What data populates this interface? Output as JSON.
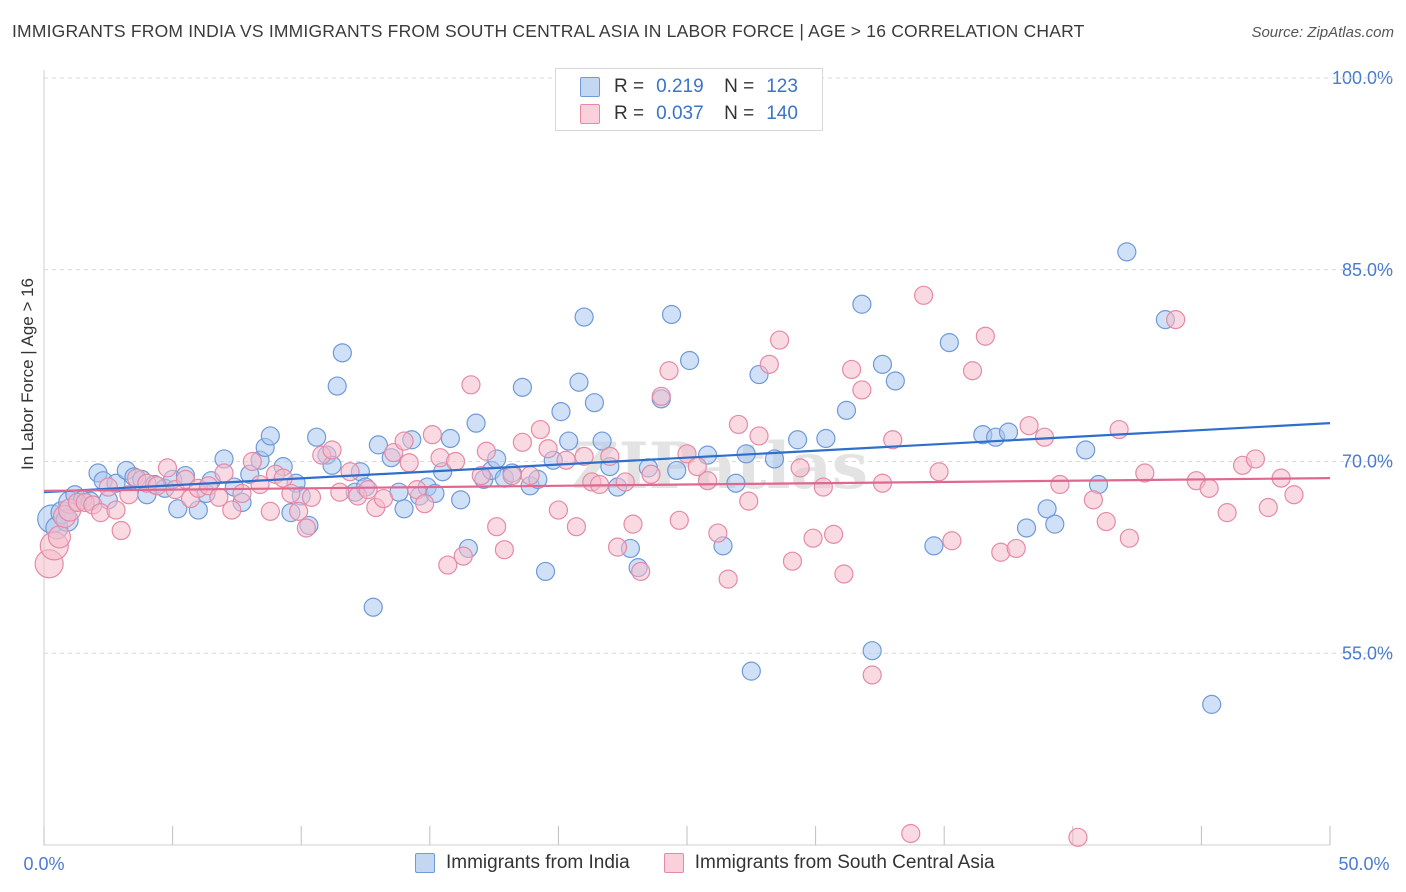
{
  "title": "IMMIGRANTS FROM INDIA VS IMMIGRANTS FROM SOUTH CENTRAL ASIA IN LABOR FORCE | AGE > 16 CORRELATION CHART",
  "source": "Source: ZipAtlas.com",
  "watermark": "ZIPatlas",
  "legend": {
    "r_label": "R =",
    "n_label": "N =",
    "india": {
      "r": "0.219",
      "n": "123"
    },
    "sca": {
      "r": "0.037",
      "n": "140"
    }
  },
  "colors": {
    "india_fill": "#a9c6ef",
    "india_stroke": "#6f9ad8",
    "india_line": "#2e6fcc",
    "sca_fill": "#f6bccb",
    "sca_stroke": "#e58aa6",
    "sca_line": "#e06890",
    "tick": "#4a7bd0"
  },
  "chart_data": {
    "type": "scatter",
    "title": "IMMIGRANTS FROM INDIA VS IMMIGRANTS FROM SOUTH CENTRAL ASIA IN LABOR FORCE | AGE > 16 CORRELATION CHART",
    "xlabel": "",
    "ylabel": "In Labor Force | Age > 16",
    "xlim": [
      0,
      50
    ],
    "ylim": [
      40,
      100
    ],
    "x_tick_labels": [
      "0.0%",
      "50.0%"
    ],
    "y_ticks": [
      55,
      70,
      85,
      100
    ],
    "y_tick_labels": [
      "55.0%",
      "70.0%",
      "85.0%",
      "100.0%"
    ],
    "grid": "horizontal dashed",
    "legend_position": "top-center",
    "series": [
      {
        "name": "Immigrants from India",
        "r": 0.219,
        "n": 123,
        "trend": [
          [
            0,
            67.6
          ],
          [
            50,
            73.0
          ]
        ],
        "points": [
          [
            0.3,
            65.5
          ],
          [
            0.5,
            64.8
          ],
          [
            0.7,
            66.0
          ],
          [
            0.9,
            65.4
          ],
          [
            1.0,
            66.8
          ],
          [
            1.2,
            67.4
          ],
          [
            1.5,
            67.0
          ],
          [
            1.8,
            66.9
          ],
          [
            2.1,
            69.1
          ],
          [
            2.3,
            68.5
          ],
          [
            2.5,
            67.0
          ],
          [
            2.8,
            68.3
          ],
          [
            3.2,
            69.3
          ],
          [
            3.5,
            68.8
          ],
          [
            3.8,
            68.6
          ],
          [
            4.0,
            67.4
          ],
          [
            4.3,
            68.2
          ],
          [
            4.7,
            67.9
          ],
          [
            5.0,
            68.6
          ],
          [
            5.2,
            66.3
          ],
          [
            5.5,
            68.9
          ],
          [
            6.0,
            66.2
          ],
          [
            6.3,
            67.5
          ],
          [
            6.5,
            68.5
          ],
          [
            7.0,
            70.2
          ],
          [
            7.4,
            68.0
          ],
          [
            7.7,
            66.8
          ],
          [
            8.0,
            69.0
          ],
          [
            8.4,
            70.1
          ],
          [
            8.6,
            71.1
          ],
          [
            8.8,
            72.0
          ],
          [
            9.3,
            69.6
          ],
          [
            9.6,
            66.0
          ],
          [
            9.8,
            68.3
          ],
          [
            10.0,
            67.3
          ],
          [
            10.3,
            65.0
          ],
          [
            10.6,
            71.9
          ],
          [
            11.0,
            70.5
          ],
          [
            11.2,
            69.7
          ],
          [
            11.4,
            75.9
          ],
          [
            11.6,
            78.5
          ],
          [
            12.1,
            67.6
          ],
          [
            12.3,
            69.2
          ],
          [
            12.5,
            68.0
          ],
          [
            12.8,
            58.6
          ],
          [
            13.0,
            71.3
          ],
          [
            13.5,
            70.3
          ],
          [
            13.8,
            67.6
          ],
          [
            14.0,
            66.3
          ],
          [
            14.3,
            71.7
          ],
          [
            14.6,
            67.3
          ],
          [
            14.9,
            68.0
          ],
          [
            15.2,
            67.5
          ],
          [
            15.5,
            69.2
          ],
          [
            15.8,
            71.8
          ],
          [
            16.2,
            67.0
          ],
          [
            16.5,
            63.2
          ],
          [
            16.8,
            73.0
          ],
          [
            17.1,
            68.6
          ],
          [
            17.4,
            69.3
          ],
          [
            17.6,
            70.2
          ],
          [
            17.9,
            68.7
          ],
          [
            18.2,
            69.1
          ],
          [
            18.6,
            75.8
          ],
          [
            18.9,
            68.1
          ],
          [
            19.2,
            68.6
          ],
          [
            19.5,
            61.4
          ],
          [
            19.8,
            70.1
          ],
          [
            20.1,
            73.9
          ],
          [
            20.4,
            71.6
          ],
          [
            20.8,
            76.2
          ],
          [
            21.0,
            81.3
          ],
          [
            21.4,
            74.6
          ],
          [
            21.7,
            71.6
          ],
          [
            22.0,
            69.6
          ],
          [
            22.3,
            68.0
          ],
          [
            22.8,
            63.2
          ],
          [
            23.1,
            61.7
          ],
          [
            23.5,
            69.5
          ],
          [
            24.0,
            74.9
          ],
          [
            24.4,
            81.5
          ],
          [
            24.6,
            69.3
          ],
          [
            25.1,
            77.9
          ],
          [
            25.8,
            70.5
          ],
          [
            26.4,
            63.4
          ],
          [
            26.9,
            68.3
          ],
          [
            27.3,
            70.6
          ],
          [
            27.5,
            53.6
          ],
          [
            27.8,
            76.8
          ],
          [
            28.4,
            70.2
          ],
          [
            29.3,
            71.7
          ],
          [
            30.4,
            71.8
          ],
          [
            31.2,
            74.0
          ],
          [
            31.8,
            82.3
          ],
          [
            32.2,
            55.2
          ],
          [
            32.6,
            77.6
          ],
          [
            33.1,
            76.3
          ],
          [
            34.6,
            63.4
          ],
          [
            35.2,
            79.3
          ],
          [
            36.5,
            72.1
          ],
          [
            37.0,
            71.9
          ],
          [
            37.5,
            72.3
          ],
          [
            38.2,
            64.8
          ],
          [
            39.0,
            66.3
          ],
          [
            39.3,
            65.1
          ],
          [
            40.5,
            70.9
          ],
          [
            41.0,
            68.2
          ],
          [
            42.1,
            86.4
          ],
          [
            43.6,
            81.1
          ],
          [
            45.4,
            51.0
          ]
        ]
      },
      {
        "name": "Immigrants from South Central Asia",
        "r": 0.037,
        "n": 140,
        "trend": [
          [
            0,
            67.7
          ],
          [
            50,
            68.7
          ]
        ],
        "points": [
          [
            0.2,
            62.0
          ],
          [
            0.4,
            63.4
          ],
          [
            0.6,
            64.1
          ],
          [
            0.8,
            65.7
          ],
          [
            1.0,
            66.2
          ],
          [
            1.3,
            66.8
          ],
          [
            1.6,
            66.8
          ],
          [
            1.9,
            66.6
          ],
          [
            2.2,
            66.0
          ],
          [
            2.5,
            68.0
          ],
          [
            2.8,
            66.2
          ],
          [
            3.0,
            64.6
          ],
          [
            3.3,
            67.4
          ],
          [
            3.6,
            68.7
          ],
          [
            4.0,
            68.3
          ],
          [
            4.4,
            68.1
          ],
          [
            4.8,
            69.5
          ],
          [
            5.1,
            67.8
          ],
          [
            5.5,
            68.6
          ],
          [
            5.7,
            67.1
          ],
          [
            6.0,
            67.9
          ],
          [
            6.4,
            68.1
          ],
          [
            6.8,
            67.2
          ],
          [
            7.0,
            69.1
          ],
          [
            7.3,
            66.2
          ],
          [
            7.7,
            67.5
          ],
          [
            8.1,
            70.0
          ],
          [
            8.4,
            68.2
          ],
          [
            8.8,
            66.1
          ],
          [
            9.0,
            69.0
          ],
          [
            9.3,
            68.7
          ],
          [
            9.6,
            67.5
          ],
          [
            9.9,
            66.1
          ],
          [
            10.2,
            64.8
          ],
          [
            10.4,
            67.2
          ],
          [
            10.8,
            70.5
          ],
          [
            11.2,
            70.9
          ],
          [
            11.5,
            67.6
          ],
          [
            11.9,
            69.2
          ],
          [
            12.2,
            67.3
          ],
          [
            12.6,
            67.8
          ],
          [
            12.9,
            66.4
          ],
          [
            13.2,
            67.1
          ],
          [
            13.6,
            70.7
          ],
          [
            14.0,
            71.6
          ],
          [
            14.2,
            69.9
          ],
          [
            14.5,
            67.8
          ],
          [
            14.8,
            66.7
          ],
          [
            15.1,
            72.1
          ],
          [
            15.4,
            70.3
          ],
          [
            15.7,
            61.9
          ],
          [
            16.0,
            70.0
          ],
          [
            16.3,
            62.6
          ],
          [
            16.6,
            76.0
          ],
          [
            17.0,
            68.9
          ],
          [
            17.2,
            70.8
          ],
          [
            17.6,
            64.9
          ],
          [
            17.9,
            63.1
          ],
          [
            18.2,
            68.9
          ],
          [
            18.6,
            71.5
          ],
          [
            18.9,
            68.9
          ],
          [
            19.3,
            72.5
          ],
          [
            19.6,
            71.0
          ],
          [
            20.0,
            66.2
          ],
          [
            20.3,
            70.1
          ],
          [
            20.7,
            64.9
          ],
          [
            21.0,
            70.4
          ],
          [
            21.3,
            68.4
          ],
          [
            21.6,
            68.2
          ],
          [
            22.0,
            70.4
          ],
          [
            22.3,
            63.3
          ],
          [
            22.6,
            68.4
          ],
          [
            22.9,
            65.1
          ],
          [
            23.2,
            61.4
          ],
          [
            23.6,
            69.0
          ],
          [
            24.0,
            75.1
          ],
          [
            24.3,
            77.1
          ],
          [
            24.7,
            65.4
          ],
          [
            25.0,
            70.6
          ],
          [
            25.4,
            69.6
          ],
          [
            25.8,
            68.5
          ],
          [
            26.2,
            64.4
          ],
          [
            26.6,
            60.8
          ],
          [
            27.0,
            72.9
          ],
          [
            27.4,
            66.9
          ],
          [
            27.8,
            72.0
          ],
          [
            28.2,
            77.6
          ],
          [
            28.6,
            79.5
          ],
          [
            29.1,
            62.2
          ],
          [
            29.4,
            69.5
          ],
          [
            29.9,
            64.0
          ],
          [
            30.3,
            68.0
          ],
          [
            30.7,
            64.3
          ],
          [
            31.1,
            61.2
          ],
          [
            31.4,
            77.2
          ],
          [
            31.8,
            75.6
          ],
          [
            32.2,
            53.3
          ],
          [
            32.6,
            68.3
          ],
          [
            33.0,
            71.7
          ],
          [
            33.7,
            40.9
          ],
          [
            34.2,
            83.0
          ],
          [
            34.8,
            69.2
          ],
          [
            35.3,
            63.8
          ],
          [
            36.1,
            77.1
          ],
          [
            36.6,
            79.8
          ],
          [
            37.2,
            62.9
          ],
          [
            37.8,
            63.2
          ],
          [
            38.3,
            72.8
          ],
          [
            38.9,
            71.9
          ],
          [
            39.5,
            68.2
          ],
          [
            40.2,
            40.6
          ],
          [
            40.8,
            67.0
          ],
          [
            41.3,
            65.3
          ],
          [
            41.8,
            72.5
          ],
          [
            42.2,
            64.0
          ],
          [
            42.8,
            69.1
          ],
          [
            44.0,
            81.1
          ],
          [
            44.8,
            68.5
          ],
          [
            45.3,
            67.9
          ],
          [
            46.0,
            66.0
          ],
          [
            46.6,
            69.7
          ],
          [
            47.1,
            70.2
          ],
          [
            47.6,
            66.4
          ],
          [
            48.1,
            68.7
          ],
          [
            48.6,
            67.4
          ]
        ]
      }
    ]
  }
}
